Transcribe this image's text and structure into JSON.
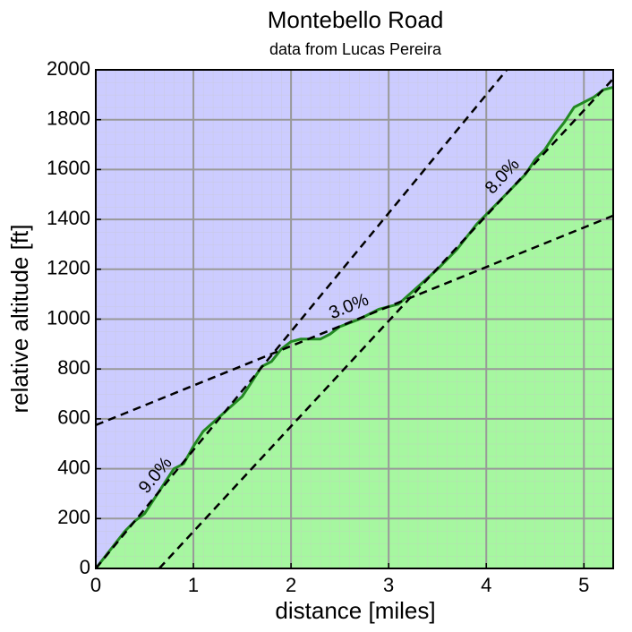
{
  "chart_data": {
    "type": "line",
    "title": "Montebello Road",
    "subtitle": "data from Lucas Pereira",
    "xlabel": "distance [miles]",
    "ylabel": "relative altitude [ft]",
    "xlim": [
      0,
      5.3
    ],
    "ylim": [
      0,
      2000
    ],
    "xticks": [
      0,
      1,
      2,
      3,
      4,
      5
    ],
    "yticks": [
      0,
      200,
      400,
      600,
      800,
      1000,
      1200,
      1400,
      1600,
      1800,
      2000
    ],
    "grid": true,
    "background": "#ccccff",
    "series": [
      {
        "color": "#228822",
        "fill": "#a6f7a0",
        "x": [
          0,
          0.1,
          0.3,
          0.4,
          0.5,
          0.7,
          0.8,
          0.9,
          1.0,
          1.1,
          1.3,
          1.5,
          1.6,
          1.7,
          1.8,
          1.9,
          2.0,
          2.1,
          2.3,
          2.4,
          2.5,
          2.7,
          2.9,
          3.0,
          3.1,
          3.3,
          3.5,
          3.7,
          3.9,
          4.0,
          4.2,
          4.4,
          4.5,
          4.6,
          4.7,
          4.8,
          4.9,
          5.0,
          5.1,
          5.2,
          5.3
        ],
        "values": [
          0,
          50,
          150,
          190,
          220,
          340,
          400,
          420,
          490,
          550,
          620,
          690,
          750,
          810,
          830,
          880,
          910,
          920,
          920,
          940,
          970,
          1000,
          1040,
          1050,
          1060,
          1130,
          1200,
          1280,
          1380,
          1420,
          1500,
          1580,
          1640,
          1680,
          1740,
          1790,
          1850,
          1870,
          1890,
          1920,
          1930
        ]
      }
    ],
    "guides": [
      {
        "label": "9.0%",
        "color": "#000000",
        "x": [
          0,
          4.21
        ],
        "values": [
          0,
          2000
        ]
      },
      {
        "label": "3.0%",
        "color": "#000000",
        "x": [
          0,
          5.3
        ],
        "values": [
          575,
          1415
        ]
      },
      {
        "label": "8.0%",
        "color": "#000000",
        "x": [
          0.65,
          5.3
        ],
        "values": [
          0,
          1964
        ]
      }
    ]
  }
}
